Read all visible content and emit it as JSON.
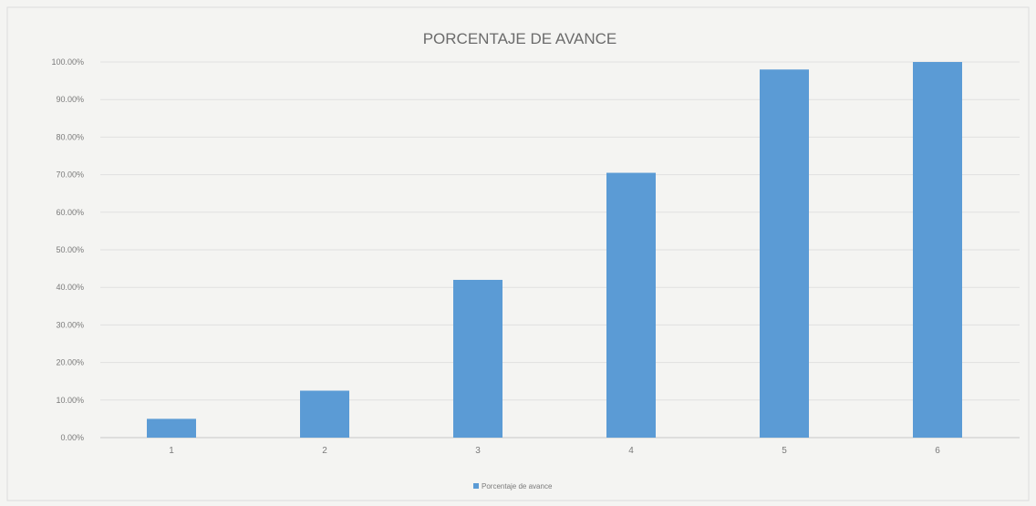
{
  "chart_data": {
    "type": "bar",
    "title": "PORCENTAJE DE AVANCE",
    "categories": [
      "1",
      "2",
      "3",
      "4",
      "5",
      "6"
    ],
    "series": [
      {
        "name": "Porcentaje de avance",
        "values": [
          0.05,
          0.125,
          0.42,
          0.705,
          0.98,
          1.0
        ]
      }
    ],
    "ylim": [
      0,
      1
    ],
    "yticks": [
      0,
      0.1,
      0.2,
      0.3,
      0.4,
      0.5,
      0.6,
      0.7,
      0.8,
      0.9,
      1.0
    ],
    "ytick_labels": [
      "0.00%",
      "10.00%",
      "20.00%",
      "30.00%",
      "40.00%",
      "50.00%",
      "60.00%",
      "70.00%",
      "80.00%",
      "90.00%",
      "100.00%"
    ],
    "grid": true,
    "legend": "bottom",
    "bar_color": "#5b9bd5"
  }
}
